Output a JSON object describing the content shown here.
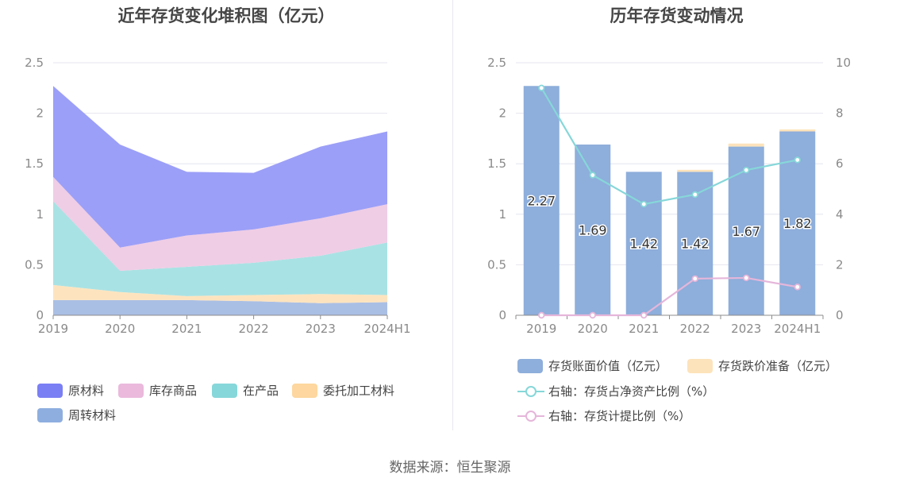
{
  "footer": {
    "source": "数据来源：恒生聚源"
  },
  "chart_data": [
    {
      "type": "area",
      "title": "近年存货变化堆积图（亿元）",
      "stacked": true,
      "categories": [
        "2019",
        "2020",
        "2021",
        "2022",
        "2023",
        "2024H1"
      ],
      "ylim": [
        0,
        2.5
      ],
      "yticks": [
        "0",
        "0.5",
        "1",
        "1.5",
        "2",
        "2.5"
      ],
      "grid": true,
      "legend_position": "bottom-left",
      "series": [
        {
          "name": "周转材料",
          "color": "#aabfe4",
          "values": [
            0.15,
            0.15,
            0.15,
            0.14,
            0.12,
            0.13
          ]
        },
        {
          "name": "委托加工材料",
          "color": "#fde4bf",
          "values": [
            0.15,
            0.08,
            0.04,
            0.06,
            0.09,
            0.07
          ]
        },
        {
          "name": "在产品",
          "color": "#a9e2e4",
          "values": [
            0.83,
            0.21,
            0.29,
            0.32,
            0.38,
            0.52
          ]
        },
        {
          "name": "库存商品",
          "color": "#efcde5",
          "values": [
            0.24,
            0.23,
            0.31,
            0.33,
            0.37,
            0.38
          ]
        },
        {
          "name": "原材料",
          "color": "#9c9ff7",
          "values": [
            0.9,
            1.02,
            0.63,
            0.56,
            0.71,
            0.72
          ]
        }
      ],
      "legend": [
        {
          "name": "原材料",
          "color": "#7b7ff4"
        },
        {
          "name": "库存商品",
          "color": "#eab9dc"
        },
        {
          "name": "在产品",
          "color": "#86d7d9"
        },
        {
          "name": "委托加工材料",
          "color": "#fdd79f"
        },
        {
          "name": "周转材料",
          "color": "#8eaedf"
        }
      ]
    },
    {
      "type": "bar",
      "title": "历年存货变动情况",
      "categories": [
        "2019",
        "2020",
        "2021",
        "2022",
        "2023",
        "2024H1"
      ],
      "ylim": [
        0,
        2.5
      ],
      "yticks": [
        "0",
        "0.5",
        "1",
        "1.5",
        "2",
        "2.5"
      ],
      "y2lim": [
        0,
        10
      ],
      "y2ticks": [
        "0",
        "2",
        "4",
        "6",
        "8",
        "10"
      ],
      "grid": true,
      "legend_position": "bottom",
      "series": [
        {
          "name": "存货账面价值（亿元）",
          "kind": "bar",
          "color": "#8eaedb",
          "values": [
            2.27,
            1.69,
            1.42,
            1.42,
            1.67,
            1.82
          ],
          "labels": [
            "2.27",
            "1.69",
            "1.42",
            "1.42",
            "1.67",
            "1.82"
          ]
        },
        {
          "name": "存货跌价准备（亿元）",
          "kind": "bar-stack",
          "color": "#fde3bb",
          "values": [
            0,
            0,
            0,
            0.02,
            0.03,
            0.02
          ]
        },
        {
          "name": "右轴：存货占净资产比例（%）",
          "kind": "line",
          "axis": "right",
          "color": "#86d7d9",
          "values": [
            9.0,
            5.55,
            4.4,
            4.78,
            5.75,
            6.15
          ]
        },
        {
          "name": "右轴：存货计提比例（%）",
          "kind": "line",
          "axis": "right",
          "color": "#e5b6da",
          "values": [
            0,
            0,
            0,
            1.45,
            1.48,
            1.12
          ]
        }
      ]
    }
  ]
}
